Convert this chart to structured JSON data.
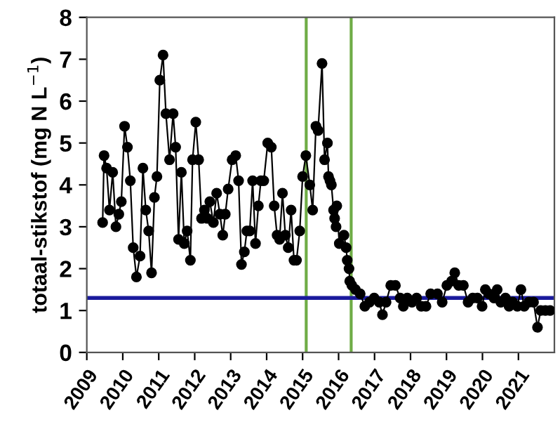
{
  "chart_data": {
    "type": "line",
    "ylabel": "totaal-stikstof (mg N L$^{−1}$)",
    "xlim": [
      2009,
      2022
    ],
    "xticks": [
      2009,
      2010,
      2011,
      2012,
      2013,
      2014,
      2015,
      2016,
      2017,
      2018,
      2019,
      2020,
      2021
    ],
    "ylim": [
      0,
      8
    ],
    "yticks": [
      0,
      1,
      2,
      3,
      4,
      5,
      6,
      7,
      8
    ],
    "grid": false,
    "marker": "circle",
    "line_style": "solid",
    "series": [
      {
        "color": "#000000",
        "x": [
          2009.44,
          2009.48,
          2009.55,
          2009.63,
          2009.72,
          2009.81,
          2009.89,
          2009.96,
          2010.05,
          2010.13,
          2010.21,
          2010.29,
          2010.38,
          2010.48,
          2010.56,
          2010.64,
          2010.72,
          2010.8,
          2010.88,
          2010.95,
          2011.03,
          2011.12,
          2011.2,
          2011.3,
          2011.4,
          2011.47,
          2011.55,
          2011.63,
          2011.71,
          2011.79,
          2011.88,
          2011.94,
          2012.03,
          2012.11,
          2012.19,
          2012.27,
          2012.35,
          2012.42,
          2012.52,
          2012.61,
          2012.7,
          2012.78,
          2012.85,
          2012.93,
          2013.04,
          2013.14,
          2013.22,
          2013.3,
          2013.38,
          2013.45,
          2013.53,
          2013.61,
          2013.69,
          2013.77,
          2013.84,
          2013.92,
          2014.03,
          2014.13,
          2014.21,
          2014.29,
          2014.36,
          2014.44,
          2014.52,
          2014.6,
          2014.68,
          2014.76,
          2014.83,
          2014.92,
          2015.0,
          2015.09,
          2015.2,
          2015.28,
          2015.37,
          2015.43,
          2015.54,
          2015.61,
          2015.69,
          2015.72,
          2015.76,
          2015.8,
          2015.86,
          2015.89,
          2015.93,
          2015.95,
          2016.02,
          2016.15,
          2016.21,
          2016.24,
          2016.29,
          2016.31,
          2016.37,
          2016.47,
          2016.6,
          2016.73,
          2016.86,
          2016.99,
          2017.13,
          2017.22,
          2017.32,
          2017.45,
          2017.58,
          2017.71,
          2017.8,
          2017.91,
          2018.04,
          2018.17,
          2018.3,
          2018.43,
          2018.56,
          2018.75,
          2018.88,
          2019.01,
          2019.14,
          2019.23,
          2019.34,
          2019.47,
          2019.6,
          2019.73,
          2019.86,
          2019.99,
          2020.08,
          2020.18,
          2020.32,
          2020.41,
          2020.51,
          2020.64,
          2020.74,
          2020.84,
          2020.97,
          2021.07,
          2021.16,
          2021.29,
          2021.42,
          2021.53,
          2021.62,
          2021.75,
          2021.88
        ],
        "values": [
          3.1,
          4.7,
          4.4,
          3.4,
          4.3,
          3.0,
          3.3,
          3.6,
          5.4,
          4.9,
          4.1,
          2.5,
          1.8,
          2.3,
          4.4,
          3.4,
          2.9,
          1.9,
          3.7,
          4.2,
          6.5,
          7.1,
          5.7,
          4.6,
          5.7,
          4.9,
          2.7,
          4.3,
          2.6,
          2.9,
          2.2,
          4.6,
          5.5,
          4.6,
          3.2,
          3.4,
          3.2,
          3.6,
          3.1,
          3.8,
          3.3,
          2.8,
          3.3,
          3.9,
          4.6,
          4.7,
          4.1,
          2.1,
          2.4,
          2.9,
          2.9,
          4.1,
          2.6,
          3.5,
          4.1,
          4.1,
          5.0,
          4.9,
          3.5,
          2.8,
          2.7,
          3.8,
          2.8,
          2.5,
          3.4,
          2.2,
          2.2,
          2.9,
          4.2,
          4.7,
          4.0,
          3.4,
          5.4,
          5.3,
          6.9,
          4.6,
          5.0,
          4.2,
          4.1,
          4.0,
          3.4,
          3.2,
          3.0,
          3.5,
          2.6,
          2.8,
          2.5,
          2.2,
          2.0,
          1.7,
          1.6,
          1.5,
          1.4,
          1.1,
          1.2,
          1.3,
          1.2,
          0.9,
          1.2,
          1.6,
          1.6,
          1.3,
          1.1,
          1.3,
          1.2,
          1.3,
          1.1,
          1.1,
          1.4,
          1.4,
          1.2,
          1.6,
          1.7,
          1.9,
          1.6,
          1.6,
          1.2,
          1.3,
          1.3,
          1.1,
          1.5,
          1.4,
          1.3,
          1.5,
          1.2,
          1.3,
          1.1,
          1.2,
          1.1,
          1.5,
          1.1,
          1.2,
          1.2,
          0.6,
          1.0,
          1.0,
          1.0
        ]
      }
    ],
    "ref_lines": [
      {
        "axis": "x",
        "value": 2015.1,
        "color": "#6fac46"
      },
      {
        "axis": "x",
        "value": 2016.35,
        "color": "#6fac46"
      },
      {
        "axis": "y",
        "value": 1.3,
        "color": "#1a1a9c"
      }
    ]
  }
}
